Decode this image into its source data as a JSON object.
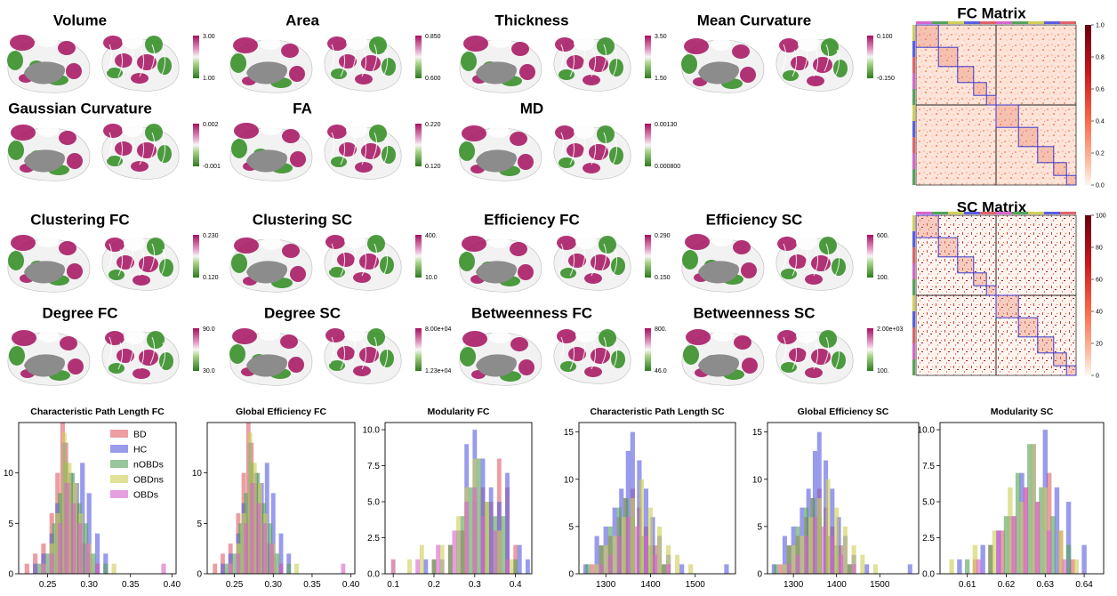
{
  "brain_panels": [
    {
      "title": "Volume",
      "cb_max": "3.00",
      "cb_min": "1.00"
    },
    {
      "title": "Area",
      "cb_max": "0.850",
      "cb_min": "0.600"
    },
    {
      "title": "Thickness",
      "cb_max": "3.50",
      "cb_min": "1.50"
    },
    {
      "title": "Mean Curvature",
      "cb_max": "0.100",
      "cb_min": "-0.150"
    },
    {
      "title": "Gaussian Curvature",
      "cb_max": "0.002",
      "cb_min": "-0.001"
    },
    {
      "title": "FA",
      "cb_max": "0.220",
      "cb_min": "0.120"
    },
    {
      "title": "MD",
      "cb_max": "0.00130",
      "cb_min": "0.000800"
    },
    {
      "title": "Clustering FC",
      "cb_max": "0.230",
      "cb_min": "0.120"
    },
    {
      "title": "Clustering SC",
      "cb_max": "400.",
      "cb_min": "10.0"
    },
    {
      "title": "Efficiency FC",
      "cb_max": "0.290",
      "cb_min": "0.150"
    },
    {
      "title": "Efficiency SC",
      "cb_max": "600.",
      "cb_min": "100."
    },
    {
      "title": "Degree FC",
      "cb_max": "90.0",
      "cb_min": "30.0"
    },
    {
      "title": "Degree SC",
      "cb_max": "8.00e+04",
      "cb_min": "1.23e+04"
    },
    {
      "title": "Betweenness FC",
      "cb_max": "800.",
      "cb_min": "46.0"
    },
    {
      "title": "Betweenness SC",
      "cb_max": "2.00e+03",
      "cb_min": "100."
    }
  ],
  "matrices": [
    {
      "title": "FC Matrix",
      "cb_ticks": [
        "1.0",
        "0.8",
        "0.6",
        "0.4",
        "0.2",
        "0.0"
      ]
    },
    {
      "title": "SC Matrix",
      "cb_ticks": [
        "100",
        "80",
        "60",
        "40",
        "20",
        "0"
      ]
    }
  ],
  "colors": {
    "BD": "#e0626a",
    "HC": "#5b5ee0",
    "nOBDs": "#55a35a",
    "OBDns": "#cfcf57",
    "OBDs": "#d666cc",
    "surface_pink": "#a5105e",
    "surface_green": "#2e8b1e",
    "medial_wall": "#8c8c8c"
  },
  "legend": [
    "BD",
    "HC",
    "nOBDs",
    "OBDns",
    "OBDs"
  ],
  "chart_data": [
    {
      "type": "bar",
      "title": "Characteristic Path Length FC",
      "xlim": [
        0.215,
        0.405
      ],
      "ylim": [
        0,
        15
      ],
      "xticks": [
        "0.25",
        "0.30",
        "0.35",
        "0.40"
      ],
      "xtick_values": [
        0.25,
        0.3,
        0.35,
        0.4
      ],
      "yticks": [
        "0",
        "5",
        "10"
      ],
      "ytick_values": [
        0,
        5,
        10
      ],
      "series": [
        {
          "name": "BD",
          "x": [
            0.225,
            0.235,
            0.245,
            0.255,
            0.262,
            0.268,
            0.272,
            0.278,
            0.285,
            0.292,
            0.3,
            0.31
          ],
          "values": [
            1,
            2,
            3,
            6,
            10,
            15,
            13,
            9,
            7,
            3,
            2,
            1
          ]
        },
        {
          "name": "HC",
          "x": [
            0.235,
            0.245,
            0.255,
            0.262,
            0.27,
            0.278,
            0.285,
            0.292,
            0.3,
            0.31,
            0.32
          ],
          "values": [
            1,
            2,
            4,
            7,
            13,
            10,
            9,
            11,
            8,
            4,
            2
          ]
        },
        {
          "name": "nOBDs",
          "x": [
            0.24,
            0.25,
            0.258,
            0.265,
            0.272,
            0.28,
            0.288,
            0.296,
            0.305,
            0.32
          ],
          "values": [
            1,
            2,
            5,
            8,
            11,
            10,
            7,
            5,
            2,
            1
          ]
        },
        {
          "name": "OBDns",
          "x": [
            0.245,
            0.255,
            0.262,
            0.27,
            0.276,
            0.283,
            0.29,
            0.3,
            0.33
          ],
          "values": [
            1,
            3,
            6,
            14,
            11,
            9,
            6,
            3,
            1
          ]
        },
        {
          "name": "OBDs",
          "x": [
            0.245,
            0.255,
            0.265,
            0.273,
            0.281,
            0.289,
            0.298,
            0.31,
            0.39
          ],
          "values": [
            1,
            2,
            5,
            9,
            7,
            5,
            3,
            1,
            1
          ]
        }
      ]
    },
    {
      "type": "bar",
      "title": "Global Efficiency FC",
      "xlim": [
        0.215,
        0.405
      ],
      "ylim": [
        0,
        15
      ],
      "xticks": [
        "0.25",
        "0.30",
        "0.35",
        "0.40"
      ],
      "xtick_values": [
        0.25,
        0.3,
        0.35,
        0.4
      ],
      "yticks": [
        "0",
        "5",
        "10"
      ],
      "ytick_values": [
        0,
        5,
        10
      ],
      "series": [
        {
          "name": "BD",
          "x": [
            0.225,
            0.235,
            0.245,
            0.255,
            0.262,
            0.268,
            0.272,
            0.278,
            0.285,
            0.292,
            0.3,
            0.31
          ],
          "values": [
            1,
            2,
            3,
            6,
            10,
            15,
            13,
            9,
            7,
            3,
            2,
            1
          ]
        },
        {
          "name": "HC",
          "x": [
            0.235,
            0.245,
            0.255,
            0.262,
            0.27,
            0.278,
            0.285,
            0.292,
            0.3,
            0.31,
            0.32
          ],
          "values": [
            1,
            2,
            4,
            7,
            13,
            10,
            9,
            11,
            8,
            4,
            2
          ]
        },
        {
          "name": "nOBDs",
          "x": [
            0.24,
            0.25,
            0.258,
            0.265,
            0.272,
            0.28,
            0.288,
            0.296,
            0.305,
            0.32
          ],
          "values": [
            1,
            2,
            5,
            8,
            11,
            10,
            7,
            5,
            2,
            1
          ]
        },
        {
          "name": "OBDns",
          "x": [
            0.245,
            0.255,
            0.262,
            0.27,
            0.276,
            0.283,
            0.29,
            0.3,
            0.33
          ],
          "values": [
            1,
            3,
            6,
            14,
            11,
            9,
            6,
            3,
            1
          ]
        },
        {
          "name": "OBDs",
          "x": [
            0.245,
            0.255,
            0.265,
            0.273,
            0.281,
            0.289,
            0.298,
            0.31,
            0.39
          ],
          "values": [
            1,
            2,
            5,
            9,
            7,
            5,
            3,
            1,
            1
          ]
        }
      ]
    },
    {
      "type": "bar",
      "title": "Modularity FC",
      "xlim": [
        0.08,
        0.44
      ],
      "ylim": [
        0,
        10.5
      ],
      "xticks": [
        "0.1",
        "0.2",
        "0.3",
        "0.4"
      ],
      "xtick_values": [
        0.1,
        0.2,
        0.3,
        0.4
      ],
      "yticks": [
        "0.0",
        "2.5",
        "5.0",
        "7.5",
        "10.0"
      ],
      "ytick_values": [
        0,
        2.5,
        5,
        7.5,
        10
      ],
      "series": [
        {
          "name": "BD",
          "x": [
            0.2,
            0.24,
            0.27,
            0.3,
            0.32,
            0.34,
            0.36,
            0.38,
            0.4
          ],
          "values": [
            1,
            2,
            3,
            5,
            6,
            5,
            8,
            6,
            2
          ]
        },
        {
          "name": "HC",
          "x": [
            0.18,
            0.22,
            0.26,
            0.28,
            0.3,
            0.32,
            0.34,
            0.36,
            0.38,
            0.41,
            0.43
          ],
          "values": [
            1,
            1,
            3,
            9,
            10,
            8,
            6,
            5,
            7,
            2,
            1
          ]
        },
        {
          "name": "nOBDs",
          "x": [
            0.2,
            0.24,
            0.27,
            0.29,
            0.31,
            0.33,
            0.35,
            0.37,
            0.4
          ],
          "values": [
            1,
            2,
            4,
            6,
            8,
            5,
            4,
            4,
            1
          ]
        },
        {
          "name": "OBDns",
          "x": [
            0.1,
            0.14,
            0.17,
            0.22,
            0.26,
            0.28,
            0.3,
            0.33,
            0.36,
            0.39
          ],
          "values": [
            1,
            1,
            2,
            2,
            4,
            6,
            8,
            5,
            3,
            1
          ]
        },
        {
          "name": "OBDs",
          "x": [
            0.1,
            0.16,
            0.21,
            0.25,
            0.28,
            0.3,
            0.32,
            0.35,
            0.38
          ],
          "values": [
            1,
            1,
            2,
            3,
            5,
            6,
            4,
            3,
            1
          ]
        }
      ]
    },
    {
      "type": "bar",
      "title": "Characteristic Path Length SC",
      "xlim": [
        1240,
        1590
      ],
      "ylim": [
        0,
        16
      ],
      "xticks": [
        "1300",
        "1400",
        "1500"
      ],
      "xtick_values": [
        1300,
        1400,
        1500
      ],
      "yticks": [
        "0",
        "5",
        "10",
        "15"
      ],
      "ytick_values": [
        0,
        5,
        10,
        15
      ],
      "series": [
        {
          "name": "BD",
          "x": [
            1270,
            1290,
            1310,
            1330,
            1345,
            1360,
            1375,
            1390,
            1410,
            1430
          ],
          "values": [
            1,
            3,
            4,
            6,
            8,
            9,
            7,
            5,
            3,
            1
          ]
        },
        {
          "name": "HC",
          "x": [
            1255,
            1280,
            1300,
            1320,
            1335,
            1350,
            1360,
            1375,
            1390,
            1405,
            1420,
            1440,
            1470,
            1570
          ],
          "values": [
            1,
            4,
            5,
            7,
            9,
            13,
            15,
            12,
            9,
            6,
            4,
            2,
            1,
            1
          ]
        },
        {
          "name": "nOBDs",
          "x": [
            1260,
            1290,
            1310,
            1330,
            1345,
            1360,
            1380,
            1400,
            1430
          ],
          "values": [
            1,
            3,
            5,
            7,
            8,
            6,
            4,
            3,
            1
          ]
        },
        {
          "name": "OBDns",
          "x": [
            1280,
            1300,
            1320,
            1340,
            1360,
            1380,
            1400,
            1420,
            1440,
            1460,
            1490
          ],
          "values": [
            1,
            3,
            4,
            6,
            8,
            10,
            7,
            5,
            3,
            2,
            1
          ]
        },
        {
          "name": "OBDs",
          "x": [
            1290,
            1310,
            1330,
            1350,
            1370,
            1390,
            1410,
            1440
          ],
          "values": [
            1,
            2,
            4,
            6,
            5,
            4,
            2,
            1
          ]
        }
      ]
    },
    {
      "type": "bar",
      "title": "Global Efficiency SC",
      "xlim": [
        1240,
        1590
      ],
      "ylim": [
        0,
        16
      ],
      "xticks": [
        "1300",
        "1400",
        "1500"
      ],
      "xtick_values": [
        1300,
        1400,
        1500
      ],
      "yticks": [
        "0",
        "5",
        "10",
        "15"
      ],
      "ytick_values": [
        0,
        5,
        10,
        15
      ],
      "series": [
        {
          "name": "BD",
          "x": [
            1270,
            1290,
            1310,
            1330,
            1345,
            1360,
            1375,
            1390,
            1410,
            1430
          ],
          "values": [
            1,
            3,
            4,
            6,
            8,
            9,
            7,
            5,
            3,
            1
          ]
        },
        {
          "name": "HC",
          "x": [
            1255,
            1280,
            1300,
            1320,
            1335,
            1350,
            1360,
            1375,
            1390,
            1405,
            1420,
            1440,
            1470,
            1570
          ],
          "values": [
            1,
            4,
            5,
            7,
            9,
            13,
            15,
            12,
            9,
            6,
            4,
            2,
            1,
            1
          ]
        },
        {
          "name": "nOBDs",
          "x": [
            1260,
            1290,
            1310,
            1330,
            1345,
            1360,
            1380,
            1400,
            1430
          ],
          "values": [
            1,
            3,
            5,
            7,
            8,
            6,
            4,
            3,
            1
          ]
        },
        {
          "name": "OBDns",
          "x": [
            1280,
            1300,
            1320,
            1340,
            1360,
            1380,
            1400,
            1420,
            1440,
            1460,
            1490
          ],
          "values": [
            1,
            3,
            4,
            6,
            8,
            10,
            7,
            5,
            3,
            2,
            1
          ]
        },
        {
          "name": "OBDs",
          "x": [
            1290,
            1310,
            1330,
            1350,
            1370,
            1390,
            1410,
            1440
          ],
          "values": [
            1,
            2,
            4,
            6,
            5,
            4,
            2,
            1
          ]
        }
      ]
    },
    {
      "type": "bar",
      "title": "Modularity SC",
      "xlim": [
        0.603,
        0.645
      ],
      "ylim": [
        0,
        10.5
      ],
      "xticks": [
        "0.61",
        "0.62",
        "0.63",
        "0.64"
      ],
      "xtick_values": [
        0.61,
        0.62,
        0.63,
        0.64
      ],
      "yticks": [
        "0.0",
        "2.5",
        "5.0",
        "7.5",
        "10.0"
      ],
      "ytick_values": [
        0,
        2.5,
        5,
        7.5,
        10
      ],
      "series": [
        {
          "name": "BD",
          "x": [
            0.612,
            0.616,
            0.619,
            0.622,
            0.625,
            0.628,
            0.631,
            0.634,
            0.637
          ],
          "values": [
            1,
            2,
            3,
            4,
            6,
            5,
            7,
            3,
            1
          ]
        },
        {
          "name": "HC",
          "x": [
            0.608,
            0.614,
            0.618,
            0.621,
            0.624,
            0.627,
            0.63,
            0.633,
            0.636,
            0.64
          ],
          "values": [
            1,
            2,
            3,
            4,
            7,
            9,
            10,
            6,
            5,
            2
          ]
        },
        {
          "name": "nOBDs",
          "x": [
            0.61,
            0.616,
            0.62,
            0.623,
            0.626,
            0.629,
            0.632,
            0.636
          ],
          "values": [
            1,
            2,
            4,
            7,
            9,
            6,
            4,
            2
          ]
        },
        {
          "name": "OBDns",
          "x": [
            0.606,
            0.612,
            0.617,
            0.621,
            0.624,
            0.627,
            0.63,
            0.634,
            0.638
          ],
          "values": [
            1,
            2,
            3,
            6,
            5,
            9,
            6,
            3,
            1
          ]
        },
        {
          "name": "OBDs",
          "x": [
            0.613,
            0.618,
            0.622,
            0.625,
            0.628,
            0.631,
            0.635
          ],
          "values": [
            1,
            3,
            4,
            6,
            5,
            3,
            1
          ]
        }
      ]
    }
  ]
}
